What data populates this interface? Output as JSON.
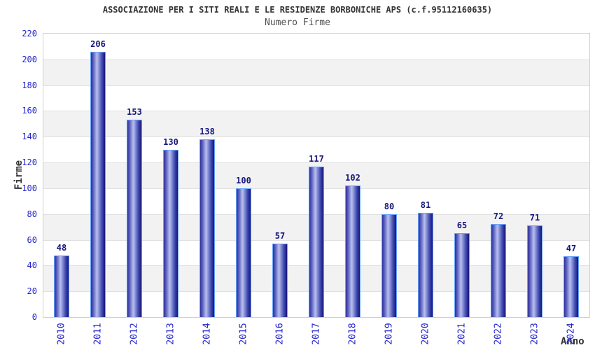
{
  "chart_data": {
    "type": "bar",
    "title": "ASSOCIAZIONE PER I SITI REALI E LE RESIDENZE BORBONICHE APS (c.f.95112160635)",
    "subtitle": "Numero Firme",
    "xlabel": "Anno",
    "ylabel": "Firme",
    "categories": [
      "2010",
      "2011",
      "2012",
      "2013",
      "2014",
      "2015",
      "2016",
      "2017",
      "2018",
      "2019",
      "2020",
      "2021",
      "2022",
      "2023",
      "2024"
    ],
    "values": [
      48,
      206,
      153,
      130,
      138,
      100,
      57,
      117,
      102,
      80,
      81,
      65,
      72,
      71,
      47
    ],
    "ylim": [
      0,
      220
    ],
    "ytick_step": 20,
    "yticks": [
      0,
      20,
      40,
      60,
      80,
      100,
      120,
      140,
      160,
      180,
      200,
      220
    ],
    "legend": "none",
    "grid": "horizontal-bands",
    "value_labels_shown": true,
    "colors": {
      "bar_edge_dark": "#15157c",
      "bar_highlight": "#b9c0ef",
      "bar_outline": "#66a3ff",
      "axis_tick_blue": "#2323cc",
      "value_label_navy": "#16167d",
      "band_gray": "#f2f2f2",
      "band_white": "#ffffff",
      "plot_border": "#d0d0d0",
      "title_color": "#333333"
    }
  }
}
